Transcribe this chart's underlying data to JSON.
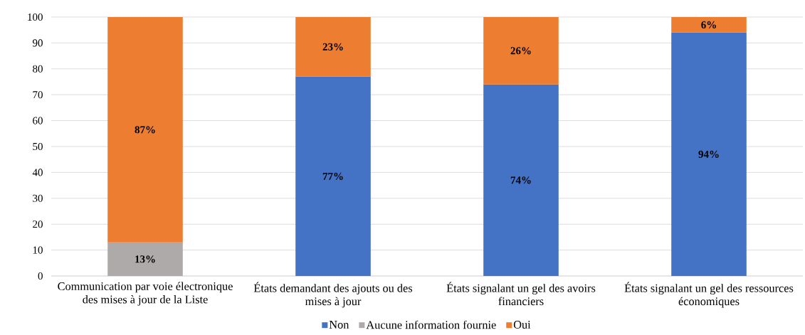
{
  "chart_data": {
    "type": "bar",
    "stacked": true,
    "categories": [
      "Communication par voie électronique des mises à jour de la Liste",
      "États demandant des ajouts ou des mises à jour",
      "États signalant un gel des avoirs financiers",
      "États signalant un gel des ressources économiques"
    ],
    "series": [
      {
        "name": "Non",
        "color": "#4472c4",
        "values": [
          null,
          77,
          74,
          94
        ],
        "value_labels": [
          null,
          "77%",
          "74%",
          "94%"
        ]
      },
      {
        "name": "Aucune information fournie",
        "color": "#aeaaaa",
        "values": [
          13,
          null,
          null,
          null
        ],
        "value_labels": [
          "13%",
          null,
          null,
          null
        ]
      },
      {
        "name": "Oui",
        "color": "#ed7d31",
        "values": [
          87,
          23,
          26,
          6
        ],
        "value_labels": [
          "87%",
          "23%",
          "26%",
          "6%"
        ]
      }
    ],
    "ylim": [
      0,
      100
    ],
    "yticks": [
      0,
      10,
      20,
      30,
      40,
      50,
      60,
      70,
      80,
      90,
      100
    ],
    "grid": "y",
    "legend": "bottom"
  }
}
